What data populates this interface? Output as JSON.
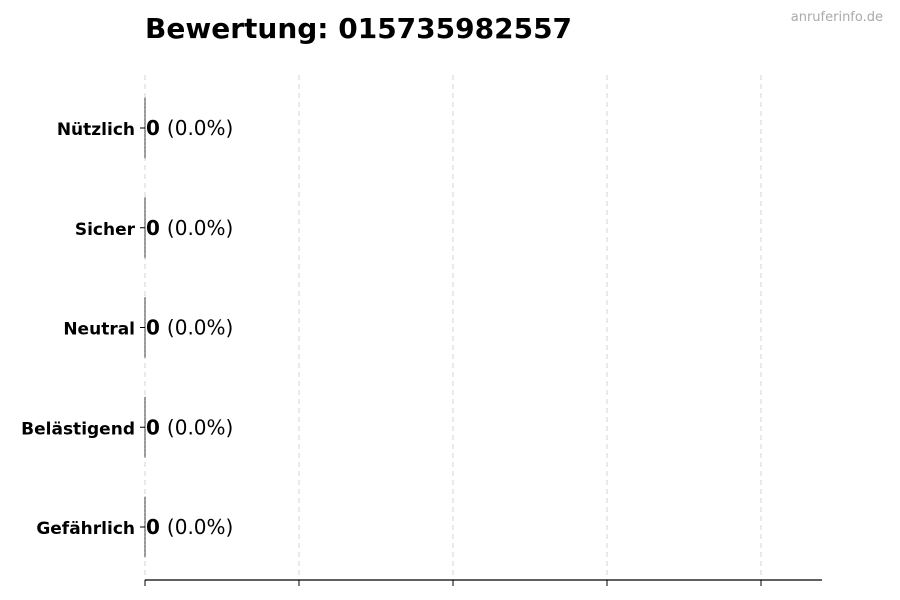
{
  "chart_data": {
    "type": "bar",
    "orientation": "horizontal",
    "title": "Bewertung: 015735982557",
    "watermark": "anruferinfo.de",
    "categories": [
      "Nützlich",
      "Sicher",
      "Neutral",
      "Belästigend",
      "Gefährlich"
    ],
    "values": [
      0,
      0,
      0,
      0,
      0
    ],
    "percent_labels": [
      "(0.0%)",
      "(0.0%)",
      "(0.0%)",
      "(0.0%)",
      "(0.0%)"
    ],
    "xlabel": "",
    "ylabel": "",
    "x_tick_labels": [],
    "grid": "vertical dashed",
    "colors": {
      "grid": "#cccccc",
      "axis": "#000000",
      "bar_edge": "#333333"
    }
  }
}
